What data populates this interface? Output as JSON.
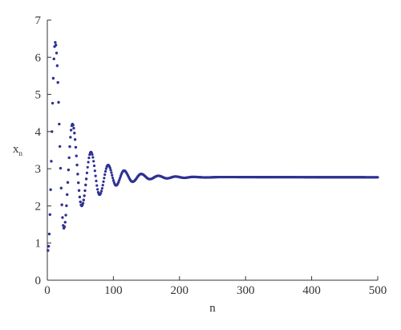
{
  "chart_data": {
    "type": "scatter",
    "title": "",
    "xlabel": "n",
    "ylabel": "x",
    "ylabel_subscript": "n",
    "xlim": [
      0,
      500
    ],
    "ylim": [
      0,
      7
    ],
    "xticks": [
      "0",
      "100",
      "200",
      "300",
      "400",
      "500"
    ],
    "yticks": [
      "0",
      "1",
      "2",
      "3",
      "4",
      "5",
      "6",
      "7"
    ],
    "grid": false,
    "legend": "none",
    "marker_color": "#2e3192",
    "series": [
      {
        "description_model": "damped oscillation about an equilibrium, one marker per integer n from 1 to 500",
        "equilibrium": 2.77,
        "local_extrema": [
          {
            "n": 1,
            "x": 0.8
          },
          {
            "n": 12,
            "x": 6.4
          },
          {
            "n": 25,
            "x": 1.4
          },
          {
            "n": 38,
            "x": 4.2
          },
          {
            "n": 52,
            "x": 2.0
          },
          {
            "n": 66,
            "x": 3.45
          },
          {
            "n": 79,
            "x": 2.3
          },
          {
            "n": 92,
            "x": 3.1
          },
          {
            "n": 104,
            "x": 2.55
          },
          {
            "n": 116,
            "x": 2.95
          },
          {
            "n": 129,
            "x": 2.65
          },
          {
            "n": 142,
            "x": 2.86
          },
          {
            "n": 155,
            "x": 2.72
          },
          {
            "n": 168,
            "x": 2.81
          },
          {
            "n": 181,
            "x": 2.74
          },
          {
            "n": 194,
            "x": 2.79
          },
          {
            "n": 207,
            "x": 2.755
          },
          {
            "n": 220,
            "x": 2.78
          },
          {
            "n": 240,
            "x": 2.765
          },
          {
            "n": 260,
            "x": 2.775
          },
          {
            "n": 500,
            "x": 2.77
          }
        ]
      }
    ]
  }
}
